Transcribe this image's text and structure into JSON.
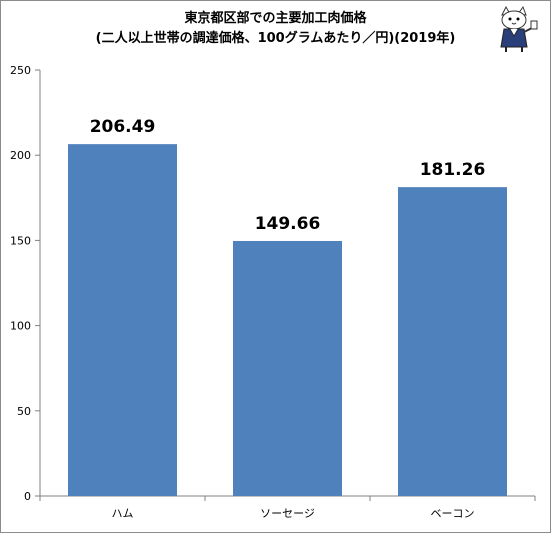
{
  "chart_data": {
    "type": "bar",
    "title": "東京都区部での主要加工肉価格",
    "subtitle": "(二人以上世帯の調達価格、100グラムあたり／円)(2019年)",
    "categories": [
      "ハム",
      "ソーセージ",
      "ベーコン"
    ],
    "values": [
      206.49,
      149.66,
      181.26
    ],
    "value_labels": [
      "206.49",
      "149.66",
      "181.26"
    ],
    "ylim": [
      0,
      250
    ],
    "yticks": [
      0,
      50,
      100,
      150,
      200,
      250
    ],
    "ytick_labels": [
      "0",
      "50",
      "100",
      "150",
      "200",
      "250"
    ],
    "grid": false,
    "legend": "none",
    "bar_color": "#4f81bd"
  },
  "mascot_icon": "mascot-character-icon"
}
